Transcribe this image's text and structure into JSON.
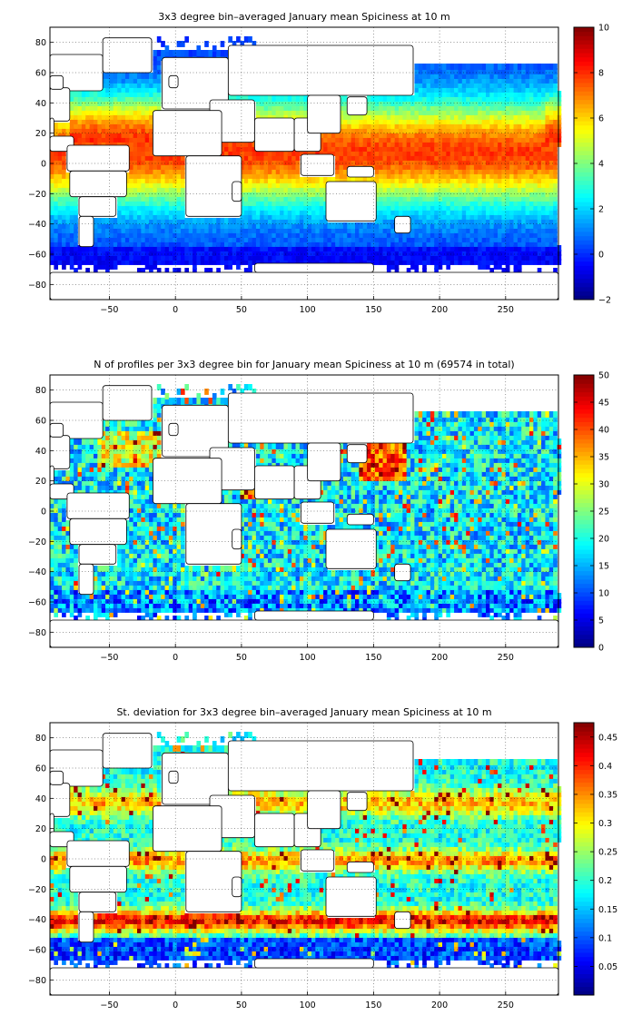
{
  "chart_data": [
    {
      "type": "heatmap",
      "title": "3x3 degree bin–averaged January mean Spiciness at 10 m",
      "xlim": [
        -95,
        290
      ],
      "ylim": [
        -90,
        90
      ],
      "xticks": [
        -50,
        0,
        50,
        100,
        150,
        200,
        250
      ],
      "yticks": [
        -80,
        -60,
        -40,
        -20,
        0,
        20,
        40,
        60,
        80
      ],
      "grid": true,
      "colormap": "jet",
      "colorbar": {
        "min": -2,
        "max": 10,
        "ticks": [
          -2,
          0,
          2,
          4,
          6,
          8,
          10
        ],
        "labels": [
          "−2",
          "0",
          "2",
          "4",
          "6",
          "8",
          "10"
        ]
      },
      "field": "spiciness",
      "approx_range": [
        -2,
        9
      ]
    },
    {
      "type": "heatmap",
      "title": "N of profiles per 3x3 degree bin for January mean Spiciness at 10 m (69574 in total)",
      "xlim": [
        -95,
        290
      ],
      "ylim": [
        -90,
        90
      ],
      "xticks": [
        -50,
        0,
        50,
        100,
        150,
        200,
        250
      ],
      "yticks": [
        -80,
        -60,
        -40,
        -20,
        0,
        20,
        40,
        60,
        80
      ],
      "grid": true,
      "colormap": "jet",
      "colorbar": {
        "min": 0,
        "max": 50,
        "ticks": [
          0,
          5,
          10,
          15,
          20,
          25,
          30,
          35,
          40,
          45,
          50
        ],
        "labels": [
          "0",
          "5",
          "10",
          "15",
          "20",
          "25",
          "30",
          "35",
          "40",
          "45",
          "50"
        ]
      },
      "field": "count",
      "total_profiles": 69574
    },
    {
      "type": "heatmap",
      "title": "St. deviation for 3x3 degree bin–averaged January mean Spiciness at 10 m",
      "xlim": [
        -95,
        290
      ],
      "ylim": [
        -90,
        90
      ],
      "xticks": [
        -50,
        0,
        50,
        100,
        150,
        200,
        250
      ],
      "yticks": [
        -80,
        -60,
        -40,
        -20,
        0,
        20,
        40,
        60,
        80
      ],
      "grid": true,
      "colormap": "jet",
      "colorbar": {
        "min": 0,
        "max": 0.475,
        "ticks": [
          0.05,
          0.1,
          0.15,
          0.2,
          0.25,
          0.3,
          0.35,
          0.4,
          0.45
        ],
        "labels": [
          "0.05",
          "0.1",
          "0.15",
          "0.2",
          "0.25",
          "0.3",
          "0.35",
          "0.4",
          "0.45"
        ]
      },
      "field": "stddev"
    }
  ]
}
